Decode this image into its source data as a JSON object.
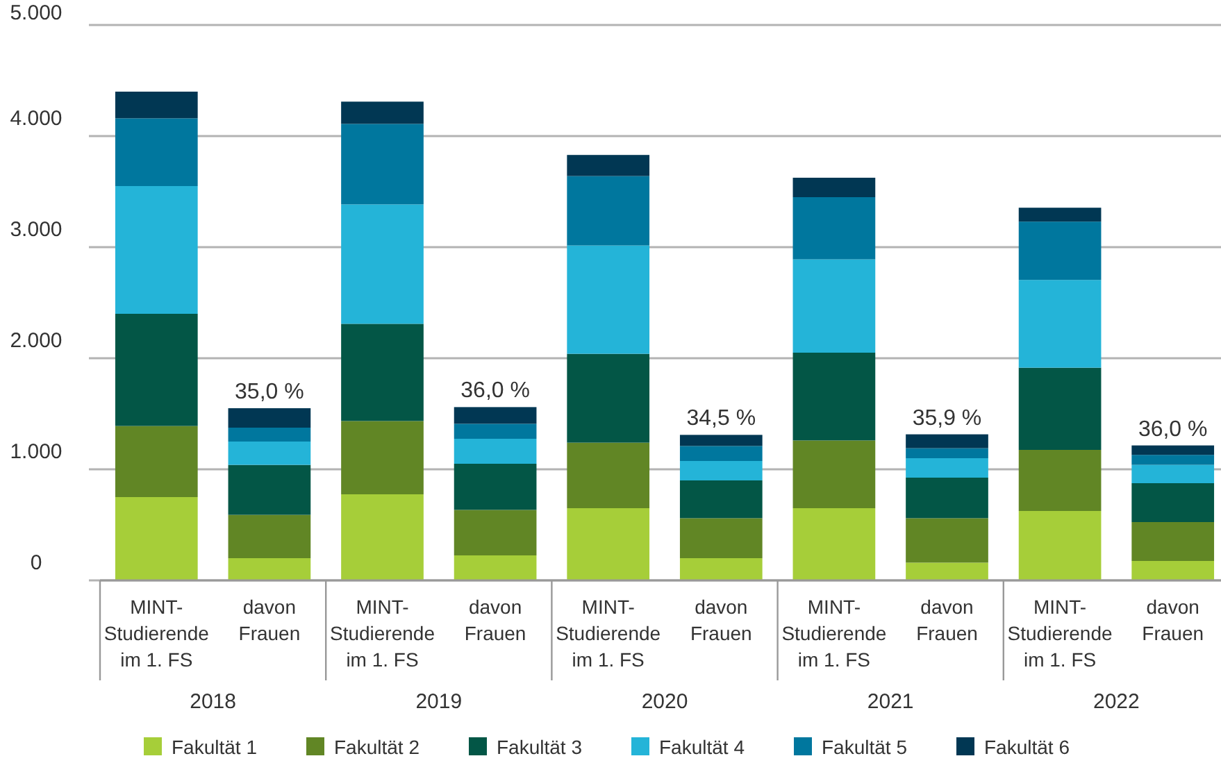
{
  "chart_data": {
    "type": "bar",
    "stacked": true,
    "categories": [
      "MINT-Studierende im 1. FS",
      "davon Frauen",
      "MINT-Studierende im 1. FS",
      "davon Frauen",
      "MINT-Studierende im 1. FS",
      "davon Frauen",
      "MINT-Studierende im 1. FS",
      "davon Frauen",
      "MINT-Studierende im 1. FS",
      "davon Frauen"
    ],
    "annotations": [
      "2018",
      "2019",
      "2020",
      "2021",
      "2022",
      "35,0 %",
      "36,0 %",
      "34,5 %",
      "35,9 %",
      "36,0 %"
    ],
    "series": [
      {
        "name": "Fakultät 1",
        "color": "#a6ce39",
        "values": [
          750,
          200,
          775,
          225,
          650,
          200,
          650,
          160,
          625,
          175
        ]
      },
      {
        "name": "Fakultät 2",
        "color": "#618625",
        "values": [
          640,
          390,
          660,
          410,
          590,
          360,
          610,
          400,
          550,
          350
        ]
      },
      {
        "name": "Fakultät 3",
        "color": "#035646",
        "values": [
          1010,
          450,
          875,
          415,
          800,
          340,
          790,
          365,
          740,
          350
        ]
      },
      {
        "name": "Fakultät 4",
        "color": "#24b4d8",
        "values": [
          1150,
          210,
          1075,
          225,
          975,
          175,
          840,
          175,
          790,
          165
        ]
      },
      {
        "name": "Fakultät 5",
        "color": "#00779e",
        "values": [
          610,
          125,
          725,
          135,
          625,
          135,
          560,
          90,
          525,
          90
        ]
      },
      {
        "name": "Fakultät 6",
        "color": "#013753",
        "values": [
          240,
          175,
          200,
          150,
          190,
          100,
          175,
          125,
          125,
          85
        ]
      }
    ],
    "ylim": [
      0,
      5000
    ],
    "yticks": [
      0,
      {
        "value": 1000,
        "label": "1.000"
      },
      {
        "value": 2000,
        "label": "2.000"
      },
      {
        "value": 3000,
        "label": "3.000"
      },
      {
        "value": 4000,
        "label": "4.000"
      },
      {
        "value": 5000,
        "label": "5.000"
      }
    ],
    "grid": "y",
    "legend": "bottom"
  }
}
